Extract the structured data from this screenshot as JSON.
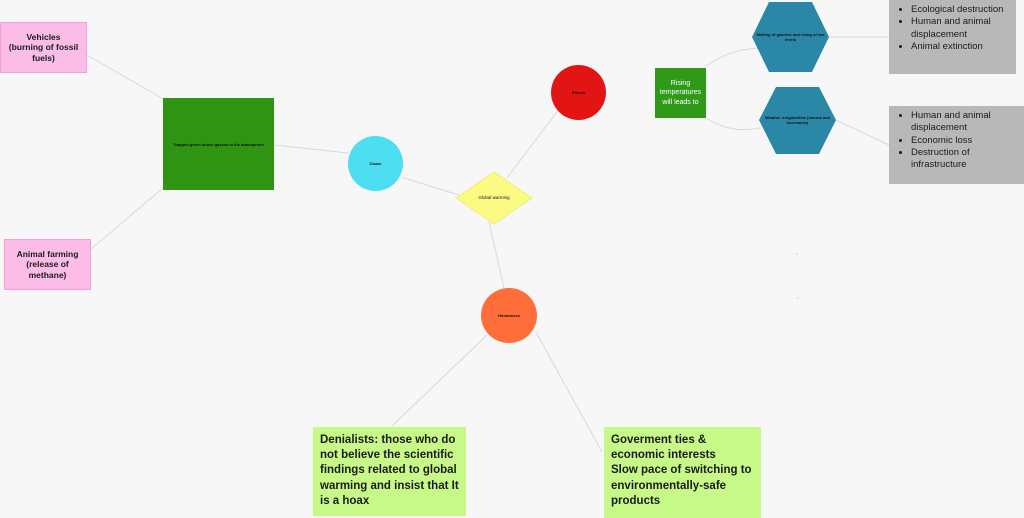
{
  "diagram": {
    "central": {
      "label": "Global warming"
    },
    "cause": {
      "label": "Cause",
      "main_box": "Trapped green house gasses in the atmosphere",
      "sources": [
        {
          "label": "Vehicles\n(burning of fossil fuels)"
        },
        {
          "label": "Animal farming\n(release of methane)"
        }
      ]
    },
    "effects": {
      "label": "Effects",
      "bridge": "Rising temperatures will leads to",
      "hexagons": [
        {
          "label": "Melting of glaciers and rising of sea levels"
        },
        {
          "label": "Weather irregularities (storms and hurricanes)"
        }
      ],
      "outcomes": [
        {
          "items": [
            "Ecological destruction",
            "Human and animal displacement",
            "Animal extinction"
          ]
        },
        {
          "items": [
            "Human and animal displacement",
            "Economic loss",
            "Destruction of infrastructure"
          ]
        }
      ]
    },
    "hindrances": {
      "label": "Hindrances",
      "notes": [
        {
          "text": "Denialists: those who do not believe the scientific findings related to global warming and insist that It is a hoax"
        },
        {
          "text": "Goverment ties & economic interests\nSlow pace of switching to environmentally-safe products"
        }
      ]
    }
  },
  "colors": {
    "background": "#f7f7f7",
    "connector": "#d9d9d9",
    "pink_sticky": "#fbbde7",
    "green_sticky": "#c7f989",
    "dark_green": "#2f9411",
    "cause_circle": "#4ddff1",
    "effects_circle": "#e31414",
    "hindrances_circle": "#ff6d3a",
    "diamond": "#fbfb84",
    "hexagon": "#2a88a6",
    "gray_box": "#b8b8b8"
  }
}
